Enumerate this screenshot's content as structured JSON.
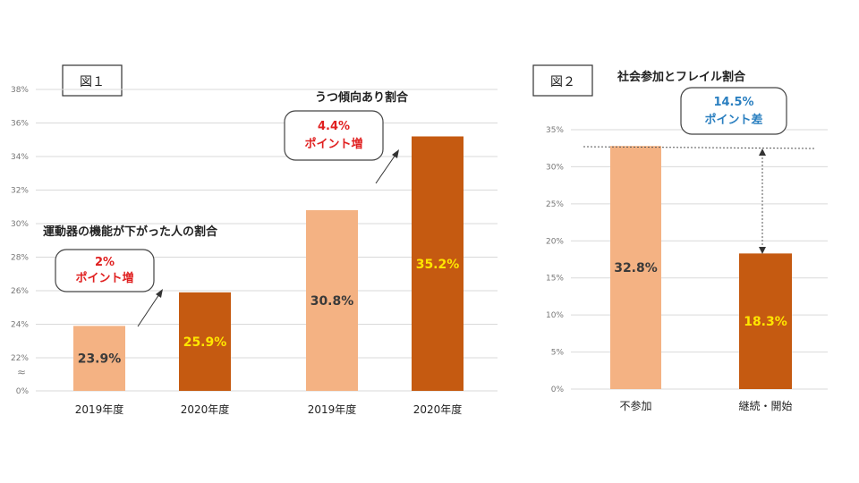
{
  "colors": {
    "bar_2019": "#f4b283",
    "bar_2020": "#c55a11",
    "label_dark": "#3a3a3a",
    "label_yellow": "#ffe600",
    "callout_red": "#e02020",
    "callout_blue": "#2a7fc0",
    "grid": "#d9d9d9"
  },
  "chart_data": [
    {
      "type": "bar",
      "figure_label": "図１",
      "ylim": [
        20,
        38
      ],
      "y_ticks": [
        "0%",
        "22%",
        "24%",
        "26%",
        "28%",
        "30%",
        "32%",
        "34%",
        "36%",
        "38%"
      ],
      "axis_break": "≈",
      "groups": [
        {
          "title": "運動器の機能が下がった人の割合",
          "callout": [
            "2%",
            "ポイント増"
          ],
          "categories": [
            "2019年度",
            "2020年度"
          ],
          "values": [
            23.9,
            25.9
          ],
          "labels": [
            "23.9%",
            "25.9%"
          ]
        },
        {
          "title": "うつ傾向あり割合",
          "callout": [
            "4.4%",
            "ポイント増"
          ],
          "categories": [
            "2019年度",
            "2020年度"
          ],
          "values": [
            30.8,
            35.2
          ],
          "labels": [
            "30.8%",
            "35.2%"
          ]
        }
      ]
    },
    {
      "type": "bar",
      "figure_label": "図２",
      "title": "社会参加とフレイル割合",
      "ylim": [
        0,
        35
      ],
      "y_ticks": [
        "0%",
        "5%",
        "10%",
        "15%",
        "20%",
        "25%",
        "30%",
        "35%"
      ],
      "categories": [
        "不参加",
        "継続・開始"
      ],
      "values": [
        32.8,
        18.3
      ],
      "labels": [
        "32.8%",
        "18.3%"
      ],
      "callout": [
        "14.5%",
        "ポイント差"
      ]
    }
  ]
}
